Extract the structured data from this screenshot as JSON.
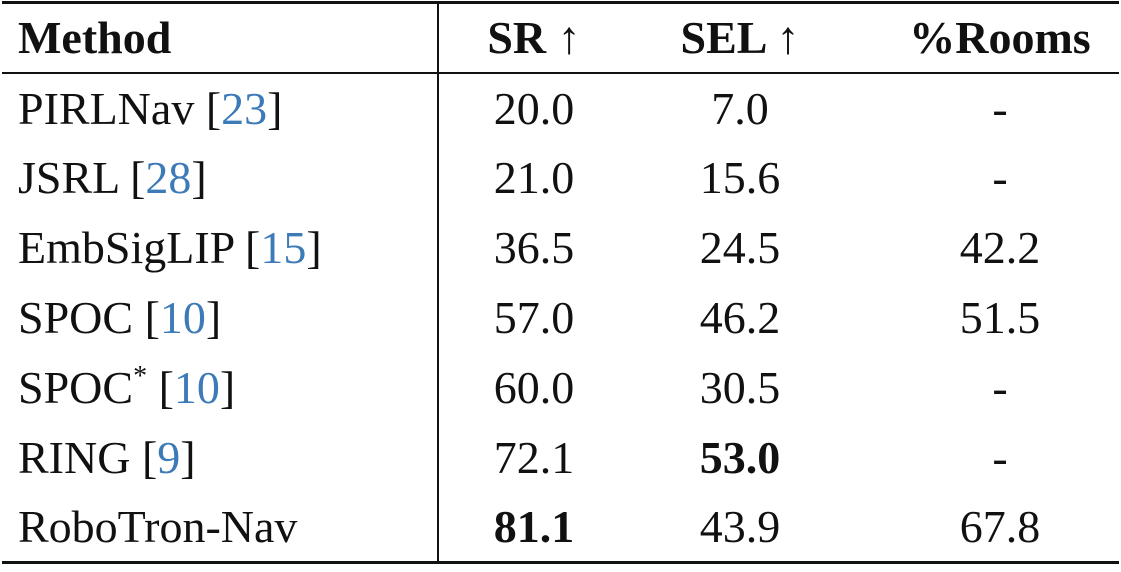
{
  "table": {
    "header": [
      "Method",
      "SR ↑",
      "SEL ↑",
      "%Rooms"
    ],
    "rows": [
      {
        "method": "PIRLNav",
        "cite": [
          "[",
          "23",
          "]"
        ],
        "cells": [
          "20.0",
          "7.0",
          "-"
        ],
        "bold": [
          false,
          false,
          false
        ]
      },
      {
        "method": "JSRL",
        "cite": [
          "[",
          "28",
          "]"
        ],
        "cells": [
          "21.0",
          "15.6",
          "-"
        ],
        "bold": [
          false,
          false,
          false
        ]
      },
      {
        "method": "EmbSigLIP",
        "cite": [
          "[",
          "15",
          "]"
        ],
        "cells": [
          "36.5",
          "24.5",
          "42.2"
        ],
        "bold": [
          false,
          false,
          false
        ]
      },
      {
        "method": "SPOC",
        "cite": [
          "[",
          "10",
          "]"
        ],
        "cells": [
          "57.0",
          "46.2",
          "51.5"
        ],
        "bold": [
          false,
          false,
          false
        ]
      },
      {
        "method": "SPOC",
        "sup": "*",
        "cite": [
          "[",
          "10",
          "]"
        ],
        "cells": [
          "60.0",
          "30.5",
          "-"
        ],
        "bold": [
          false,
          false,
          false
        ]
      },
      {
        "method": "RING",
        "cite": [
          "[",
          "9",
          "]"
        ],
        "cells": [
          "72.1",
          "53.0",
          "-"
        ],
        "bold": [
          false,
          true,
          false
        ]
      },
      {
        "method": "RoboTron-Nav",
        "cells": [
          "81.1",
          "43.9",
          "67.8"
        ],
        "bold": [
          true,
          false,
          false
        ]
      }
    ]
  }
}
